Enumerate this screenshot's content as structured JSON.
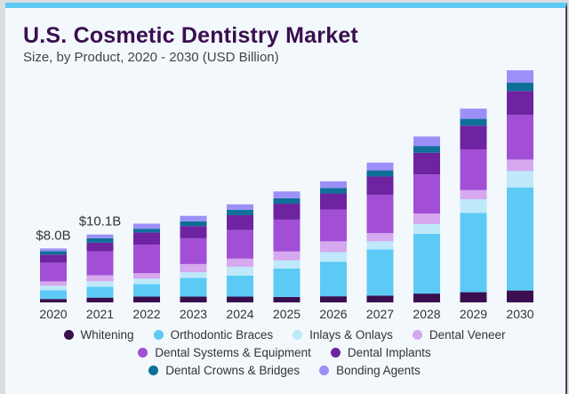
{
  "chart_data": {
    "type": "bar",
    "stacked": true,
    "title": "U.S. Cosmetic Dentistry Market",
    "subtitle": "Size, by Product, 2020 - 2030 (USD Billion)",
    "categories": [
      "2020",
      "2021",
      "2022",
      "2023",
      "2024",
      "2025",
      "2026",
      "2027",
      "2028",
      "2029",
      "2030"
    ],
    "series": [
      {
        "name": "Whitening",
        "color": "#3a0f4f",
        "values": [
          0.5,
          0.7,
          0.85,
          0.85,
          0.85,
          0.8,
          0.9,
          1.0,
          1.3,
          1.5,
          1.75
        ]
      },
      {
        "name": "Orthodontic Braces",
        "color": "#5ccaf5",
        "values": [
          1.3,
          1.6,
          1.85,
          2.75,
          3.1,
          4.2,
          5.1,
          6.8,
          8.8,
          11.7,
          15.2
        ]
      },
      {
        "name": "Inlays & Onlays",
        "color": "#bfe9fa",
        "values": [
          0.65,
          0.8,
          0.8,
          0.85,
          1.3,
          1.2,
          1.4,
          1.2,
          1.45,
          2.0,
          2.4
        ]
      },
      {
        "name": "Dental Veneer",
        "color": "#d6a8ee",
        "values": [
          0.65,
          0.9,
          0.8,
          1.2,
          1.2,
          1.3,
          1.6,
          1.2,
          1.55,
          1.35,
          1.7
        ]
      },
      {
        "name": "Dental Systems & Equipment",
        "color": "#a24fd6",
        "values": [
          2.75,
          3.5,
          4.2,
          3.8,
          4.2,
          4.7,
          4.7,
          5.65,
          5.75,
          6.0,
          6.6
        ]
      },
      {
        "name": "Dental Implants",
        "color": "#6e23a0",
        "values": [
          1.2,
          1.3,
          1.8,
          1.8,
          2.2,
          2.35,
          2.35,
          2.7,
          3.2,
          3.5,
          3.5
        ]
      },
      {
        "name": "Dental Crowns & Bridges",
        "color": "#0e6f98",
        "values": [
          0.5,
          0.65,
          0.55,
          0.7,
          0.8,
          0.8,
          0.8,
          0.9,
          1.0,
          1.0,
          1.25
        ]
      },
      {
        "name": "Bonding Agents",
        "color": "#9b8ff8",
        "values": [
          0.4,
          0.55,
          0.75,
          0.8,
          0.8,
          1.0,
          1.0,
          1.15,
          1.4,
          1.5,
          1.8
        ]
      }
    ],
    "annotations": [
      {
        "category": "2020",
        "text": "$8.0B"
      },
      {
        "category": "2021",
        "text": "$10.1B"
      }
    ],
    "grid": false,
    "legend_position": "bottom"
  }
}
